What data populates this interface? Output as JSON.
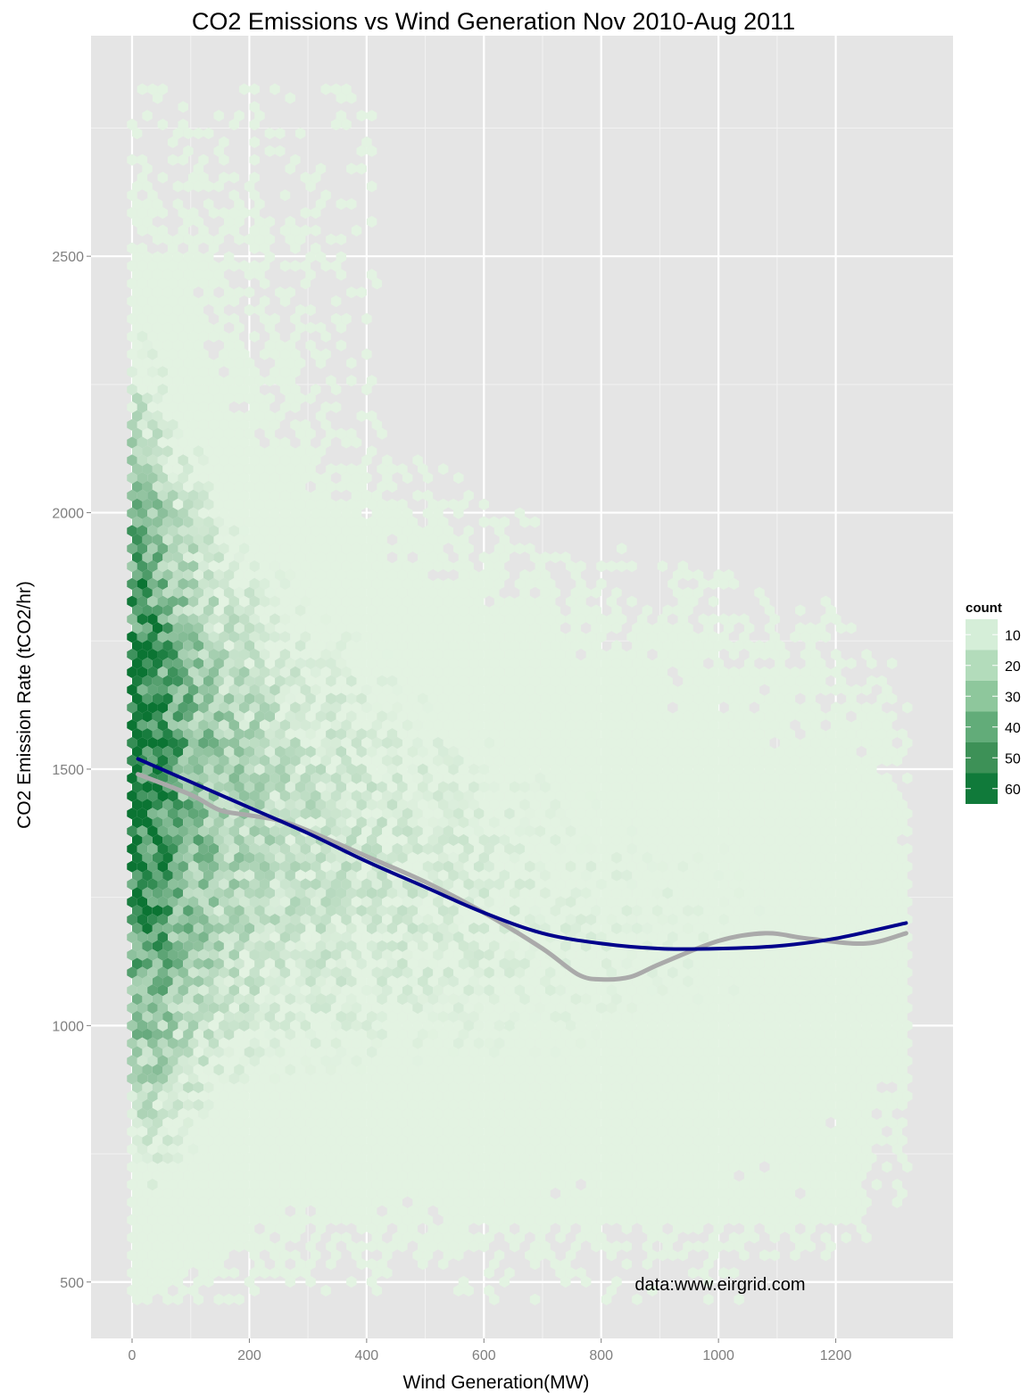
{
  "chart_data": {
    "type": "hexbin",
    "title": "CO2 Emissions vs Wind Generation Nov 2010-Aug 2011",
    "xlabel": "Wind Generation(MW)",
    "ylabel": "CO2 Emission Rate (tCO2/hr)",
    "annotation": "data:www.eirgrid.com",
    "xlim": [
      -70,
      1400
    ],
    "ylim": [
      390,
      2930
    ],
    "x_ticks": [
      0,
      200,
      400,
      600,
      800,
      1000,
      1200
    ],
    "x_tick_labels": [
      "0",
      "200",
      "400",
      "600",
      "800",
      "1000",
      "1200"
    ],
    "y_ticks": [
      500,
      1000,
      1500,
      2000,
      2500
    ],
    "y_tick_labels": [
      "500",
      "1000",
      "1500",
      "2000",
      "2500"
    ],
    "grid": true,
    "legend": {
      "title": "count",
      "position": "right",
      "values": [
        10,
        20,
        30,
        40,
        50,
        60
      ],
      "labels": [
        "10",
        "20",
        "30",
        "40",
        "50",
        "60"
      ],
      "colors": [
        "#d5eed8",
        "#b3dcbb",
        "#8ec79c",
        "#62ac79",
        "#3d9157",
        "#107a3a"
      ]
    },
    "density_profile": {
      "x": [
        10,
        40,
        80,
        150,
        250,
        400,
        600,
        800,
        1000,
        1200,
        1320
      ],
      "y_center": [
        1520,
        1490,
        1470,
        1440,
        1390,
        1330,
        1250,
        1200,
        1180,
        1180,
        1180
      ],
      "y_spread": [
        420,
        430,
        420,
        400,
        380,
        370,
        360,
        350,
        350,
        330,
        300
      ],
      "peak_count": [
        62,
        55,
        38,
        25,
        18,
        14,
        11,
        9,
        8,
        6,
        4
      ]
    },
    "series": [
      {
        "type": "smooth",
        "color": "#00008b",
        "x": [
          10,
          100,
          200,
          300,
          400,
          500,
          600,
          700,
          800,
          900,
          1000,
          1100,
          1200,
          1320
        ],
        "y": [
          1520,
          1475,
          1425,
          1375,
          1320,
          1270,
          1220,
          1180,
          1160,
          1150,
          1150,
          1155,
          1170,
          1200
        ]
      },
      {
        "type": "smooth",
        "color": "#aaaaaa",
        "x": [
          10,
          100,
          150,
          200,
          250,
          300,
          400,
          500,
          600,
          700,
          760,
          800,
          850,
          900,
          1000,
          1080,
          1150,
          1250,
          1320
        ],
        "y": [
          1490,
          1450,
          1420,
          1410,
          1400,
          1380,
          1330,
          1280,
          1220,
          1150,
          1100,
          1090,
          1095,
          1120,
          1165,
          1180,
          1170,
          1160,
          1180
        ]
      }
    ]
  }
}
